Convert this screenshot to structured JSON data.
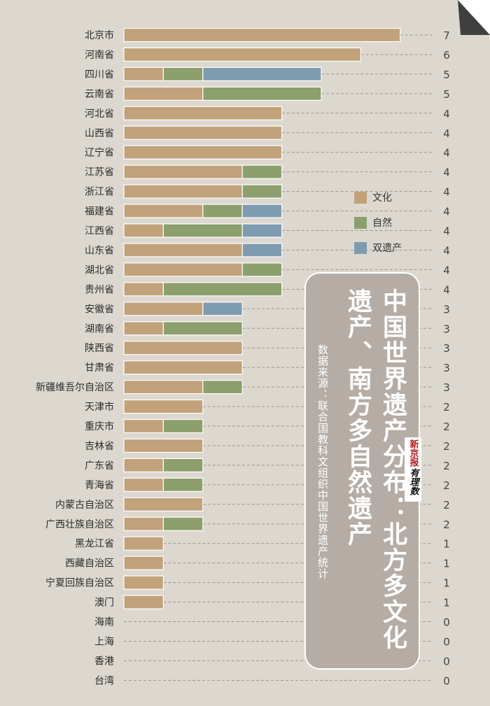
{
  "chart_data": {
    "type": "bar",
    "orientation": "horizontal",
    "stacked": true,
    "title": "中国世界遗产分布：北方多文化遗产、南方多自然遗产",
    "source": "数据来源：联合国教科文组织中国世界遗产统计",
    "legend_position": "right",
    "xlim": [
      0,
      7
    ],
    "series": [
      {
        "name": "文化",
        "color": "#c1a27a"
      },
      {
        "name": "自然",
        "color": "#8c9f6c"
      },
      {
        "name": "双遗产",
        "color": "#7f9bb0"
      }
    ],
    "rows": [
      {
        "label": "北京市",
        "values": [
          7,
          0,
          0
        ],
        "total": "7"
      },
      {
        "label": "河南省",
        "values": [
          6,
          0,
          0
        ],
        "total": "6"
      },
      {
        "label": "四川省",
        "values": [
          1,
          1,
          3
        ],
        "total": "5"
      },
      {
        "label": "云南省",
        "values": [
          2,
          3,
          0
        ],
        "total": "5"
      },
      {
        "label": "河北省",
        "values": [
          4,
          0,
          0
        ],
        "total": "4"
      },
      {
        "label": "山西省",
        "values": [
          4,
          0,
          0
        ],
        "total": "4"
      },
      {
        "label": "辽宁省",
        "values": [
          4,
          0,
          0
        ],
        "total": "4"
      },
      {
        "label": "江苏省",
        "values": [
          3,
          1,
          0
        ],
        "total": "4"
      },
      {
        "label": "浙江省",
        "values": [
          3,
          1,
          0
        ],
        "total": "4"
      },
      {
        "label": "福建省",
        "values": [
          2,
          1,
          1
        ],
        "total": "4"
      },
      {
        "label": "江西省",
        "values": [
          1,
          2,
          1
        ],
        "total": "4"
      },
      {
        "label": "山东省",
        "values": [
          3,
          0,
          1
        ],
        "total": "4"
      },
      {
        "label": "湖北省",
        "values": [
          3,
          1,
          0
        ],
        "total": "4"
      },
      {
        "label": "贵州省",
        "values": [
          1,
          3,
          0
        ],
        "total": "4"
      },
      {
        "label": "安徽省",
        "values": [
          2,
          0,
          1
        ],
        "total": "3"
      },
      {
        "label": "湖南省",
        "values": [
          1,
          2,
          0
        ],
        "total": "3"
      },
      {
        "label": "陕西省",
        "values": [
          3,
          0,
          0
        ],
        "total": "3"
      },
      {
        "label": "甘肃省",
        "values": [
          3,
          0,
          0
        ],
        "total": "3"
      },
      {
        "label": "新疆维吾尔自治区",
        "values": [
          2,
          1,
          0
        ],
        "total": "3"
      },
      {
        "label": "天津市",
        "values": [
          2,
          0,
          0
        ],
        "total": "2"
      },
      {
        "label": "重庆市",
        "values": [
          1,
          1,
          0
        ],
        "total": "2"
      },
      {
        "label": "吉林省",
        "values": [
          2,
          0,
          0
        ],
        "total": "2"
      },
      {
        "label": "广东省",
        "values": [
          1,
          1,
          0
        ],
        "total": "2"
      },
      {
        "label": "青海省",
        "values": [
          1,
          1,
          0
        ],
        "total": "2"
      },
      {
        "label": "内蒙古自治区",
        "values": [
          2,
          0,
          0
        ],
        "total": "2"
      },
      {
        "label": "广西壮族自治区",
        "values": [
          1,
          1,
          0
        ],
        "total": "2"
      },
      {
        "label": "黑龙江省",
        "values": [
          1,
          0,
          0
        ],
        "total": "1"
      },
      {
        "label": "西藏自治区",
        "values": [
          1,
          0,
          0
        ],
        "total": "1"
      },
      {
        "label": "宁夏回族自治区",
        "values": [
          1,
          0,
          0
        ],
        "total": "1"
      },
      {
        "label": "澳门",
        "values": [
          1,
          0,
          0
        ],
        "total": "1"
      },
      {
        "label": "海南",
        "values": [
          0,
          0,
          0
        ],
        "total": "0"
      },
      {
        "label": "上海",
        "values": [
          0,
          0,
          0
        ],
        "total": "0"
      },
      {
        "label": "香港",
        "values": [
          0,
          0,
          0
        ],
        "total": "0"
      },
      {
        "label": "台湾",
        "values": [
          0,
          0,
          0
        ],
        "total": "0"
      }
    ]
  },
  "note": {
    "title": "中国世界遗产分布：北方多文化遗产、南方多自然遗产",
    "source": "数据来源：联合国教科文组织中国世界遗产统计"
  },
  "brand": {
    "name": "新京报",
    "column": "有理数"
  },
  "colors": {
    "background": "#dcd8d0",
    "culture": "#c1a27a",
    "nature": "#8c9f6c",
    "mixed": "#7f9bb0",
    "card": "#b5aca5",
    "brand_red": "#b3191f"
  }
}
